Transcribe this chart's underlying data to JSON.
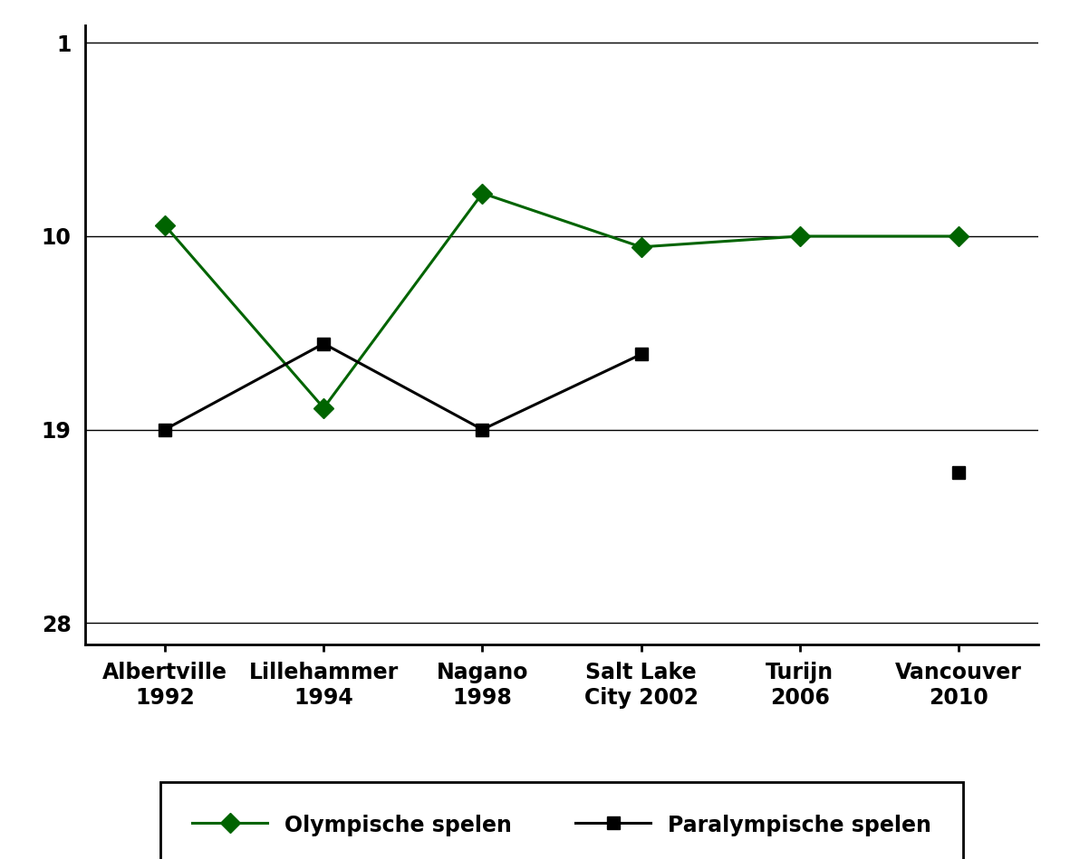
{
  "categories": [
    "Albertville\n1992",
    "Lillehammer\n1994",
    "Nagano\n1998",
    "Salt Lake\nCity 2002",
    "Turijn\n2006",
    "Vancouver\n2010"
  ],
  "x_positions": [
    0,
    1,
    2,
    3,
    4,
    5
  ],
  "olympic_y": [
    9.5,
    18.0,
    8.0,
    10.5,
    10.0,
    10.0
  ],
  "paralympic_segments_x": [
    [
      0,
      1,
      2,
      3
    ],
    [
      5
    ]
  ],
  "paralympic_segments_y": [
    [
      19.0,
      15.0,
      19.0,
      15.5
    ],
    [
      21.0
    ]
  ],
  "olympic_color": "#006400",
  "paralympic_color": "#000000",
  "yticks": [
    1,
    10,
    19,
    28
  ],
  "ylim_bottom": 29.0,
  "ylim_top": 0.2,
  "xlim_left": -0.5,
  "xlim_right": 5.5,
  "legend_label_olympic": "Olympische spelen",
  "legend_label_paralympic": "Paralympische spelen",
  "background_color": "#ffffff",
  "marker_size_olympic": 11,
  "marker_size_paralympic": 10,
  "linewidth": 2.2,
  "grid_linewidth": 1.0,
  "spine_linewidth": 2.0,
  "fontsize_ticks": 17,
  "fontsize_legend": 17
}
